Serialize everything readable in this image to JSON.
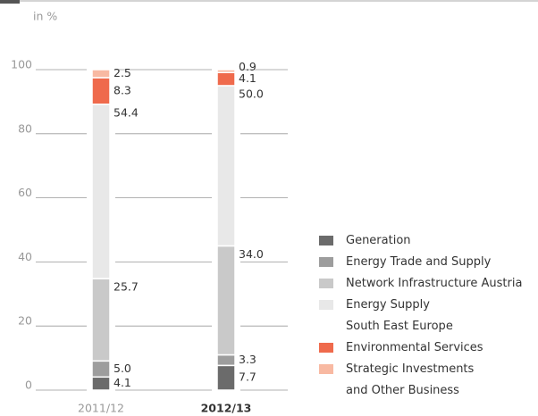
{
  "chart_data": {
    "type": "stacked_bar",
    "subtitle": "in %",
    "categories": [
      "2011/12",
      "2012/13"
    ],
    "series": [
      {
        "name": "Generation",
        "color": "#6b6b6b",
        "values": [
          4.1,
          7.7
        ],
        "value_labels": [
          "4.1",
          "7.7"
        ]
      },
      {
        "name": "Energy Trade and Supply",
        "color": "#9d9d9d",
        "values": [
          5.0,
          3.3
        ],
        "value_labels": [
          "5.0",
          "3.3"
        ]
      },
      {
        "name": "Network Infrastructure Austria",
        "color": "#c9c9c9",
        "values": [
          25.7,
          34.0
        ],
        "value_labels": [
          "25.7",
          "34.0"
        ]
      },
      {
        "name": "Energy Supply\nSouth East Europe",
        "color": "#e8e8e8",
        "values": [
          54.4,
          50.0
        ],
        "value_labels": [
          "54.4",
          "50.0"
        ]
      },
      {
        "name": "Environmental Services",
        "color": "#ef6a4c",
        "values": [
          8.3,
          4.1
        ],
        "value_labels": [
          "8.3",
          "4.1"
        ]
      },
      {
        "name": "Strategic Investments\nand Other Business",
        "color": "#f8b9a2",
        "values": [
          2.5,
          0.9
        ],
        "value_labels": [
          "2.5",
          "0.9"
        ]
      }
    ],
    "ylim": [
      0,
      100
    ],
    "yticks": [
      0,
      20,
      40,
      60,
      80,
      100
    ],
    "grid": true,
    "legend": "right"
  }
}
